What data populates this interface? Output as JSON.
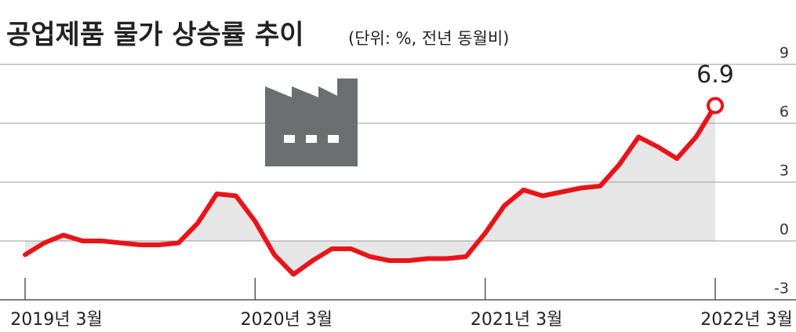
{
  "chart_data": {
    "type": "line",
    "title": "공업제품 물가 상승률 추이",
    "subtitle": "(단위: %, 전년 동월비)",
    "categories": [
      "2019년 3월",
      null,
      null,
      null,
      null,
      null,
      null,
      null,
      null,
      null,
      null,
      null,
      "2020년 3월",
      null,
      null,
      null,
      null,
      null,
      null,
      null,
      null,
      null,
      null,
      null,
      "2021년 3월",
      null,
      null,
      null,
      null,
      null,
      null,
      null,
      null,
      null,
      null,
      null,
      "2022년 3월"
    ],
    "series": [
      {
        "name": "공업제품 물가 상승률",
        "color": "#e8141a",
        "values": [
          -0.7,
          -0.1,
          0.3,
          0.0,
          0.0,
          -0.1,
          -0.2,
          -0.2,
          -0.1,
          0.9,
          2.4,
          2.3,
          1.0,
          -0.7,
          -1.7,
          -1.0,
          -0.4,
          -0.4,
          -0.8,
          -1.0,
          -1.0,
          -0.9,
          -0.9,
          -0.8,
          0.4,
          1.8,
          2.6,
          2.3,
          2.5,
          2.7,
          2.8,
          3.9,
          5.3,
          4.8,
          4.2,
          5.3,
          6.9
        ]
      }
    ],
    "area_color": "#e6e6e6",
    "ylim": [
      -3,
      9
    ],
    "yticks": [
      9,
      6,
      3,
      0,
      -3
    ],
    "grid": true
  }
}
